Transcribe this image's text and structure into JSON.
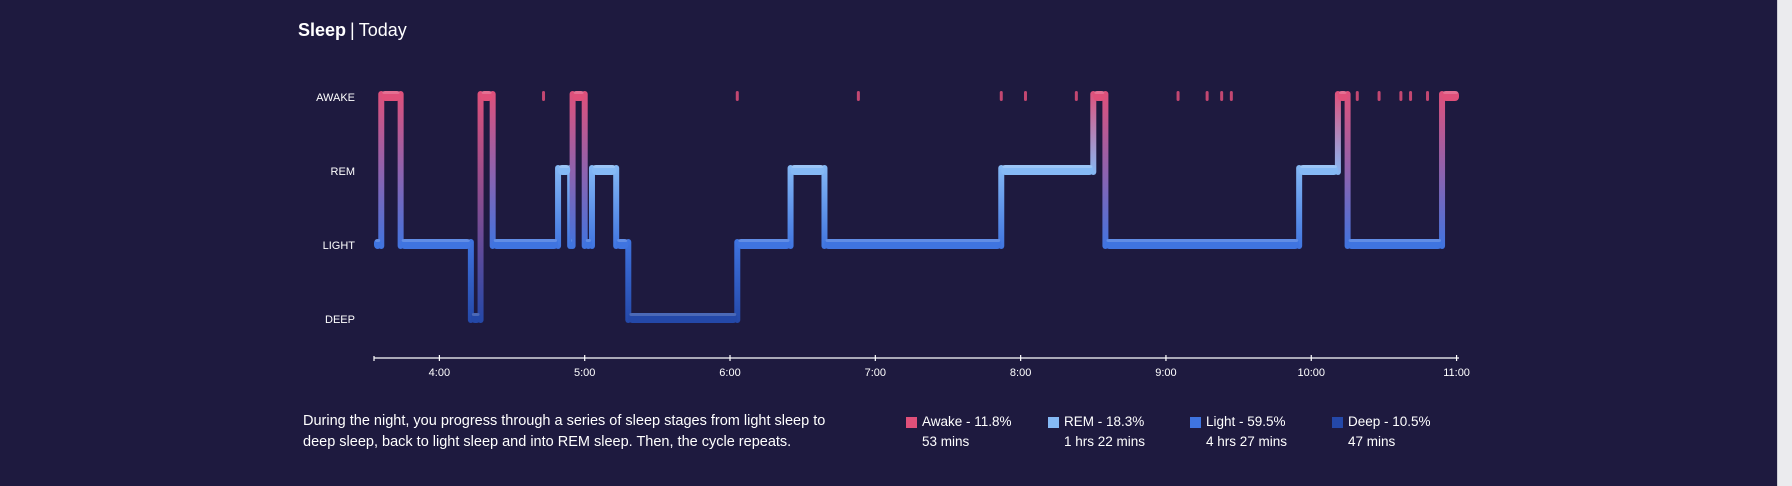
{
  "header": {
    "title": "Sleep",
    "separator": "|",
    "subtitle": "Today"
  },
  "description": "During the night, you progress through a series of sleep stages from light sleep to deep sleep, back to light sleep and into REM sleep. Then, the cycle repeats.",
  "colors": {
    "background": "#1e1a3f",
    "awake": "#e0507a",
    "rem": "#85b9f5",
    "light": "#3f74e0",
    "deep": "#2448a8",
    "axis": "#ffffff"
  },
  "legend": [
    {
      "stage": "awake",
      "label": "Awake - 11.8%",
      "duration": "53 mins"
    },
    {
      "stage": "rem",
      "label": "REM - 18.3%",
      "duration": "1 hrs 22 mins"
    },
    {
      "stage": "light",
      "label": "Light - 59.5%",
      "duration": "4 hrs 27 mins"
    },
    {
      "stage": "deep",
      "label": "Deep - 10.5%",
      "duration": "47 mins"
    }
  ],
  "chart_data": {
    "type": "line",
    "title": "Sleep",
    "subtitle": "Today",
    "y_categories": [
      "AWAKE",
      "REM",
      "LIGHT",
      "DEEP"
    ],
    "x_range": [
      "3:33",
      "11:01"
    ],
    "x_ticks": [
      "4:00",
      "5:00",
      "6:00",
      "7:00",
      "8:00",
      "9:00",
      "10:00",
      "11:00"
    ],
    "grid": false,
    "segments": [
      {
        "stage": "LIGHT",
        "start": "3:33",
        "end": "3:36"
      },
      {
        "stage": "AWAKE",
        "start": "3:36",
        "end": "3:44"
      },
      {
        "stage": "LIGHT",
        "start": "3:44",
        "end": "4:13"
      },
      {
        "stage": "DEEP",
        "start": "4:13",
        "end": "4:17"
      },
      {
        "stage": "AWAKE",
        "start": "4:17",
        "end": "4:22"
      },
      {
        "stage": "LIGHT",
        "start": "4:22",
        "end": "4:49"
      },
      {
        "stage": "REM",
        "start": "4:49",
        "end": "4:54"
      },
      {
        "stage": "LIGHT",
        "start": "4:54",
        "end": "4:55"
      },
      {
        "stage": "AWAKE",
        "start": "4:55",
        "end": "5:00"
      },
      {
        "stage": "LIGHT",
        "start": "5:00",
        "end": "5:03"
      },
      {
        "stage": "REM",
        "start": "5:03",
        "end": "5:13"
      },
      {
        "stage": "LIGHT",
        "start": "5:13",
        "end": "5:18"
      },
      {
        "stage": "DEEP",
        "start": "5:18",
        "end": "6:03"
      },
      {
        "stage": "LIGHT",
        "start": "6:03",
        "end": "6:25"
      },
      {
        "stage": "REM",
        "start": "6:25",
        "end": "6:39"
      },
      {
        "stage": "LIGHT",
        "start": "6:39",
        "end": "7:52"
      },
      {
        "stage": "REM",
        "start": "7:52",
        "end": "8:30"
      },
      {
        "stage": "AWAKE",
        "start": "8:30",
        "end": "8:35"
      },
      {
        "stage": "LIGHT",
        "start": "8:35",
        "end": "9:55"
      },
      {
        "stage": "REM",
        "start": "9:55",
        "end": "10:11"
      },
      {
        "stage": "AWAKE",
        "start": "10:11",
        "end": "10:15"
      },
      {
        "stage": "LIGHT",
        "start": "10:15",
        "end": "10:54"
      },
      {
        "stage": "AWAKE",
        "start": "10:54",
        "end": "11:01"
      }
    ],
    "awake_ticks": [
      "4:43",
      "6:03",
      "6:53",
      "7:52",
      "8:02",
      "8:23",
      "9:05",
      "9:17",
      "9:23",
      "9:27",
      "10:19",
      "10:28",
      "10:37",
      "10:41",
      "10:48"
    ],
    "legend_placement": "bottom-right"
  }
}
